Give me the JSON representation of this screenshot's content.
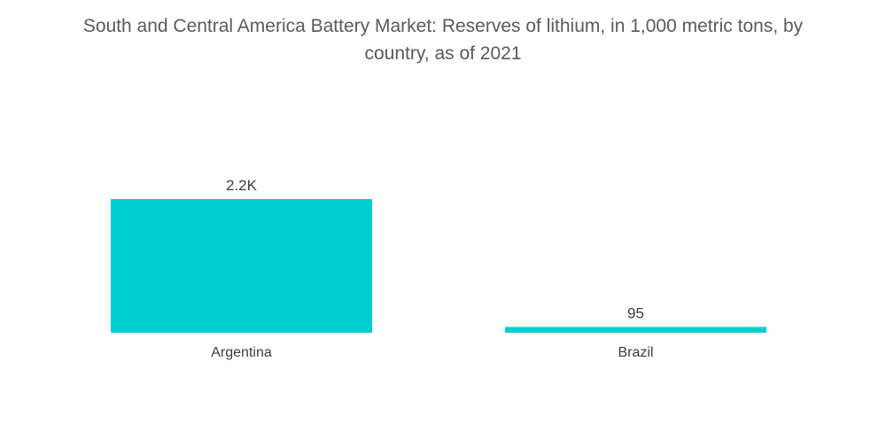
{
  "chart_data": {
    "type": "bar",
    "title_lines": [
      "South and Central America Battery Market: Reserves of lithium, in 1,000 metric tons, by",
      "country, as of 2021"
    ],
    "title": "South and Central America Battery Market: Reserves of lithium, in 1,000 metric tons, by country, as of 2021",
    "categories": [
      "Argentina",
      "Brazil"
    ],
    "values": [
      2200,
      95
    ],
    "data_labels": [
      "2.2K",
      "95"
    ],
    "xlabel": "",
    "ylabel": "",
    "ylim": [
      0,
      2200
    ],
    "grid": false,
    "bar_color": "#00ced1",
    "text_color": "#3d3d3d",
    "title_color": "#5a5a5a"
  }
}
